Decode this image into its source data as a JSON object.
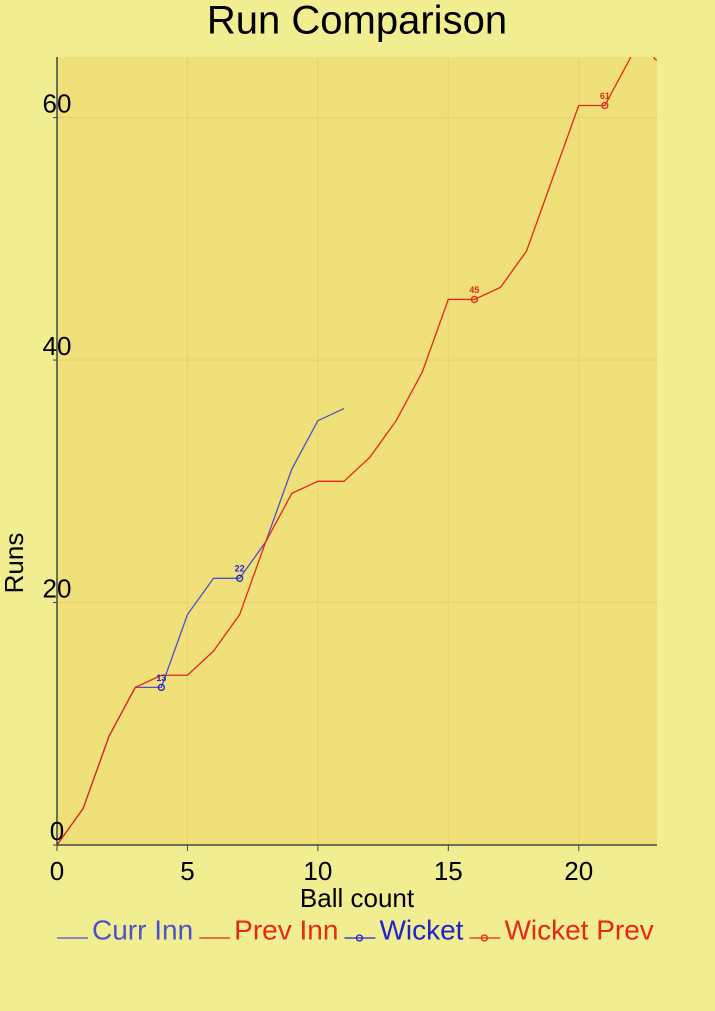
{
  "chart_data": {
    "type": "line",
    "title": "Run Comparison",
    "x_label": "Ball count",
    "y_label": "Runs",
    "xlim": [
      0,
      23
    ],
    "ylim": [
      0,
      65
    ],
    "xticks": [
      0,
      5,
      10,
      15,
      20
    ],
    "yticks": [
      0,
      20,
      40,
      60
    ],
    "grid": true,
    "series": [
      {
        "name": "Curr Inn",
        "color": "#5050c8",
        "marker": false,
        "x": [
          0,
          1,
          2,
          3,
          4,
          5,
          6,
          7,
          8,
          9,
          10,
          11
        ],
        "values": [
          0,
          3,
          9,
          13,
          13,
          19,
          22,
          22,
          25,
          31,
          35,
          36
        ]
      },
      {
        "name": "Prev Inn",
        "color": "#e8261a",
        "marker": false,
        "x": [
          0,
          1,
          2,
          3,
          4,
          5,
          6,
          7,
          8,
          9,
          10,
          11,
          12,
          13,
          14,
          15,
          16,
          17,
          18,
          19,
          20,
          21,
          22
        ],
        "values": [
          0,
          3,
          9,
          13,
          14,
          14,
          16,
          19,
          25,
          29,
          30,
          30,
          32,
          35,
          39,
          45,
          45,
          46,
          49,
          55,
          61,
          61,
          65
        ]
      },
      {
        "name": "Wicket",
        "color": "#2020d0",
        "marker": true,
        "x": [
          4,
          7
        ],
        "values": [
          13,
          22
        ]
      },
      {
        "name": "Wicket Prev",
        "color": "#e8261a",
        "marker": true,
        "x": [
          16,
          21,
          23
        ],
        "values": [
          45,
          61,
          65
        ]
      }
    ]
  }
}
